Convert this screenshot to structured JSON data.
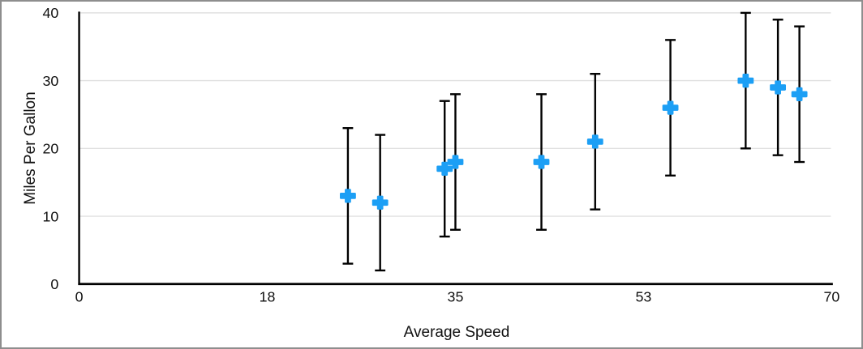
{
  "frame": {
    "background": "#ffffff",
    "border_color": "#8e8e8e"
  },
  "chart_data": {
    "type": "scatter",
    "title": "",
    "xlabel": "Average Speed",
    "ylabel": "Miles Per Gallon",
    "xlim": [
      0,
      70
    ],
    "ylim": [
      0,
      40
    ],
    "x_ticks": [
      {
        "value": 0,
        "label": "0"
      },
      {
        "value": 17.5,
        "label": "18"
      },
      {
        "value": 35,
        "label": "35"
      },
      {
        "value": 52.5,
        "label": "53"
      },
      {
        "value": 70,
        "label": "70"
      }
    ],
    "y_ticks": [
      {
        "value": 0,
        "label": "0"
      },
      {
        "value": 10,
        "label": "10"
      },
      {
        "value": 20,
        "label": "20"
      },
      {
        "value": 30,
        "label": "30"
      },
      {
        "value": 40,
        "label": "40"
      }
    ],
    "grid": "horizontal-only",
    "legend": "none",
    "marker": "plus",
    "error_bars": {
      "mode": "fixed",
      "plus": 10,
      "minus": 10,
      "cap_width": 13
    },
    "colors": {
      "marker": "#1c9ff5",
      "error_bar": "#000000",
      "gridline": "#e0e0e0",
      "axis": "#000000",
      "tick_text": "#111111"
    },
    "series": [
      {
        "name": "Miles Per Gallon",
        "points": [
          {
            "x": 25,
            "y": 13
          },
          {
            "x": 28,
            "y": 12
          },
          {
            "x": 34,
            "y": 17
          },
          {
            "x": 35,
            "y": 18
          },
          {
            "x": 43,
            "y": 18
          },
          {
            "x": 48,
            "y": 21
          },
          {
            "x": 55,
            "y": 26
          },
          {
            "x": 62,
            "y": 30
          },
          {
            "x": 65,
            "y": 29
          },
          {
            "x": 67,
            "y": 28
          }
        ]
      }
    ]
  }
}
